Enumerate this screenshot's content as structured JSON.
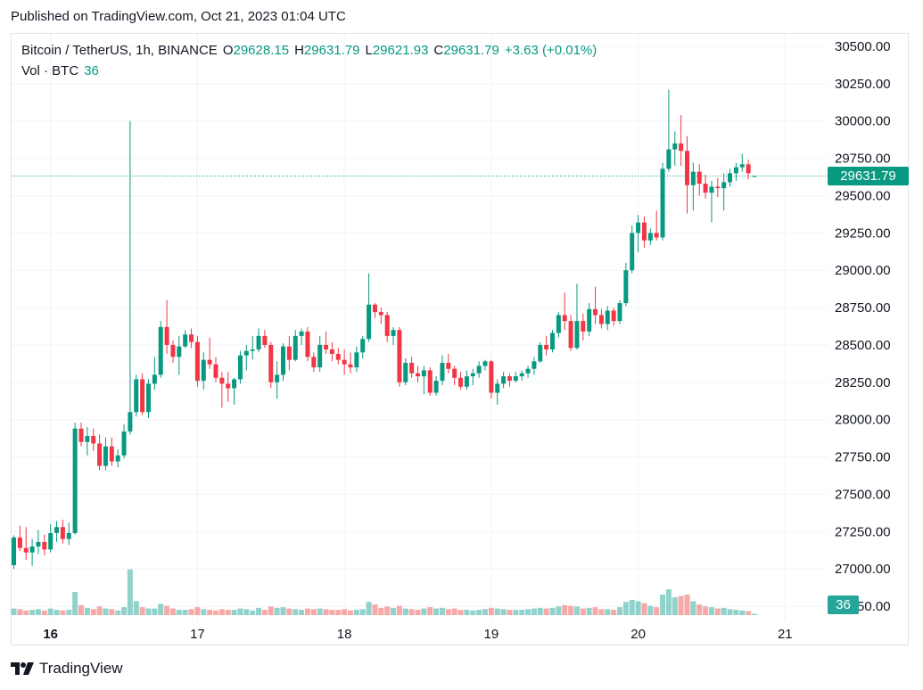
{
  "published": "Published on TradingView.com, Oct 21, 2023 01:04 UTC",
  "legend": {
    "symbol": "Bitcoin / TetherUS, 1h, BINANCE",
    "o_label": "O",
    "o_value": "29628.15",
    "h_label": "H",
    "h_value": "29631.79",
    "l_label": "L",
    "l_value": "29621.93",
    "c_label": "C",
    "c_value": "29631.79",
    "change": "+3.63 (+0.01%)",
    "vol_label": "Vol · BTC",
    "vol_value": "36"
  },
  "last_price_tag": "29631.79",
  "volume_tag": "36",
  "brand": "TradingView",
  "colors": {
    "up": "#089981",
    "down": "#f23645",
    "vol_up": "#26a69a",
    "vol_down": "#ef5350",
    "grid": "#f0f3fa"
  },
  "chart_data": {
    "type": "candlestick",
    "title": "Bitcoin / TetherUS, 1h, BINANCE",
    "y_axis": {
      "range": [
        26750,
        30500
      ],
      "ticks": [
        "30500.00",
        "30250.00",
        "30000.00",
        "29750.00",
        "29500.00",
        "29250.00",
        "29000.00",
        "28750.00",
        "28500.00",
        "28250.00",
        "28000.00",
        "27750.00",
        "27500.00",
        "27250.00",
        "27000.00",
        "26750.00"
      ]
    },
    "x_axis": {
      "ticks": [
        "16",
        "17",
        "18",
        "19",
        "20",
        "21"
      ],
      "bold_tick": "16"
    },
    "last_price": 29631.79,
    "grid": true,
    "candles": [
      [
        27025,
        27225,
        27000,
        27210,
        1.0
      ],
      [
        27210,
        27290,
        27120,
        27140,
        0.9
      ],
      [
        27140,
        27280,
        27060,
        27110,
        0.7
      ],
      [
        27110,
        27200,
        27020,
        27150,
        0.8
      ],
      [
        27150,
        27260,
        27100,
        27180,
        0.9
      ],
      [
        27180,
        27230,
        27090,
        27130,
        0.7
      ],
      [
        27130,
        27300,
        27110,
        27240,
        1.0
      ],
      [
        27240,
        27320,
        27180,
        27280,
        0.8
      ],
      [
        27280,
        27330,
        27170,
        27200,
        0.7
      ],
      [
        27200,
        27310,
        27160,
        27240,
        0.8
      ],
      [
        27240,
        27980,
        27230,
        27940,
        3.5
      ],
      [
        27940,
        27980,
        27820,
        27850,
        1.5
      ],
      [
        27850,
        27950,
        27760,
        27890,
        1.1
      ],
      [
        27890,
        27940,
        27790,
        27840,
        0.9
      ],
      [
        27840,
        27900,
        27660,
        27690,
        1.3
      ],
      [
        27690,
        27880,
        27660,
        27820,
        1.0
      ],
      [
        27820,
        27880,
        27690,
        27720,
        0.9
      ],
      [
        27720,
        27800,
        27680,
        27760,
        0.7
      ],
      [
        27760,
        27970,
        27740,
        27920,
        1.2
      ],
      [
        27920,
        30000,
        27900,
        28050,
        6.9
      ],
      [
        28050,
        28300,
        28020,
        28270,
        2.1
      ],
      [
        28270,
        28310,
        28030,
        28050,
        1.2
      ],
      [
        28050,
        28270,
        28010,
        28240,
        1.0
      ],
      [
        28240,
        28420,
        28200,
        28300,
        1.0
      ],
      [
        28300,
        28660,
        28280,
        28620,
        1.7
      ],
      [
        28620,
        28800,
        28440,
        28500,
        1.4
      ],
      [
        28500,
        28530,
        28380,
        28420,
        1.0
      ],
      [
        28420,
        28560,
        28300,
        28490,
        0.8
      ],
      [
        28490,
        28600,
        28480,
        28570,
        0.8
      ],
      [
        28570,
        28610,
        28480,
        28520,
        0.9
      ],
      [
        28520,
        28560,
        28220,
        28260,
        1.2
      ],
      [
        28260,
        28450,
        28200,
        28400,
        0.9
      ],
      [
        28400,
        28550,
        28340,
        28370,
        0.8
      ],
      [
        28370,
        28420,
        28250,
        28280,
        0.7
      ],
      [
        28280,
        28320,
        28080,
        28240,
        0.9
      ],
      [
        28240,
        28320,
        28120,
        28210,
        0.8
      ],
      [
        28210,
        28280,
        28100,
        28270,
        0.8
      ],
      [
        28270,
        28460,
        28240,
        28430,
        1.0
      ],
      [
        28430,
        28500,
        28330,
        28460,
        0.9
      ],
      [
        28460,
        28560,
        28400,
        28470,
        0.7
      ],
      [
        28470,
        28610,
        28450,
        28560,
        1.1
      ],
      [
        28560,
        28600,
        28480,
        28500,
        0.8
      ],
      [
        28500,
        28520,
        28210,
        28250,
        1.3
      ],
      [
        28250,
        28390,
        28140,
        28300,
        1.1
      ],
      [
        28300,
        28510,
        28260,
        28490,
        1.2
      ],
      [
        28490,
        28560,
        28330,
        28400,
        1.0
      ],
      [
        28400,
        28600,
        28390,
        28560,
        0.9
      ],
      [
        28560,
        28610,
        28500,
        28590,
        0.8
      ],
      [
        28590,
        28620,
        28390,
        28420,
        1.0
      ],
      [
        28420,
        28450,
        28320,
        28350,
        0.9
      ],
      [
        28350,
        28560,
        28320,
        28500,
        1.0
      ],
      [
        28500,
        28590,
        28440,
        28470,
        0.9
      ],
      [
        28470,
        28520,
        28390,
        28440,
        0.8
      ],
      [
        28440,
        28480,
        28370,
        28400,
        0.8
      ],
      [
        28400,
        28470,
        28300,
        28370,
        0.9
      ],
      [
        28370,
        28450,
        28310,
        28350,
        0.7
      ],
      [
        28350,
        28490,
        28320,
        28450,
        0.8
      ],
      [
        28450,
        28560,
        28410,
        28540,
        0.9
      ],
      [
        28540,
        28980,
        28520,
        28770,
        2.0
      ],
      [
        28770,
        28780,
        28680,
        28720,
        1.6
      ],
      [
        28720,
        28750,
        28640,
        28700,
        1.1
      ],
      [
        28700,
        28720,
        28520,
        28560,
        1.3
      ],
      [
        28560,
        28620,
        28500,
        28600,
        1.1
      ],
      [
        28600,
        28620,
        28220,
        28250,
        1.4
      ],
      [
        28250,
        28410,
        28230,
        28380,
        1.0
      ],
      [
        28380,
        28420,
        28280,
        28310,
        0.9
      ],
      [
        28310,
        28360,
        28250,
        28290,
        0.8
      ],
      [
        28290,
        28360,
        28170,
        28330,
        1.0
      ],
      [
        28330,
        28350,
        28160,
        28180,
        1.2
      ],
      [
        28180,
        28290,
        28160,
        28260,
        1.0
      ],
      [
        28260,
        28430,
        28230,
        28380,
        1.1
      ],
      [
        28380,
        28440,
        28310,
        28340,
        0.9
      ],
      [
        28340,
        28360,
        28230,
        28280,
        1.0
      ],
      [
        28280,
        28320,
        28200,
        28220,
        0.8
      ],
      [
        28220,
        28330,
        28200,
        28290,
        0.8
      ],
      [
        28290,
        28340,
        28230,
        28310,
        0.7
      ],
      [
        28310,
        28390,
        28280,
        28360,
        0.8
      ],
      [
        28360,
        28400,
        28330,
        28390,
        0.9
      ],
      [
        28390,
        28400,
        28140,
        28180,
        1.1
      ],
      [
        28180,
        28270,
        28100,
        28240,
        1.0
      ],
      [
        28240,
        28320,
        28210,
        28290,
        0.9
      ],
      [
        28290,
        28310,
        28220,
        28260,
        0.8
      ],
      [
        28260,
        28320,
        28250,
        28290,
        0.8
      ],
      [
        28290,
        28330,
        28260,
        28310,
        0.8
      ],
      [
        28310,
        28360,
        28280,
        28340,
        0.9
      ],
      [
        28340,
        28420,
        28300,
        28390,
        1.0
      ],
      [
        28390,
        28520,
        28380,
        28500,
        1.1
      ],
      [
        28500,
        28560,
        28430,
        28470,
        1.0
      ],
      [
        28470,
        28600,
        28450,
        28580,
        1.1
      ],
      [
        28580,
        28720,
        28550,
        28700,
        1.3
      ],
      [
        28700,
        28850,
        28600,
        28660,
        1.5
      ],
      [
        28660,
        28700,
        28460,
        28480,
        1.4
      ],
      [
        28480,
        28910,
        28470,
        28660,
        1.3
      ],
      [
        28660,
        28710,
        28530,
        28590,
        1.0
      ],
      [
        28590,
        28780,
        28560,
        28740,
        1.1
      ],
      [
        28740,
        28890,
        28640,
        28700,
        1.2
      ],
      [
        28700,
        28740,
        28610,
        28640,
        0.9
      ],
      [
        28640,
        28760,
        28600,
        28730,
        0.9
      ],
      [
        28730,
        28750,
        28630,
        28660,
        0.8
      ],
      [
        28660,
        28800,
        28640,
        28780,
        1.2
      ],
      [
        28780,
        29050,
        28760,
        29000,
        2.0
      ],
      [
        29000,
        29300,
        28980,
        29250,
        2.3
      ],
      [
        29250,
        29370,
        29120,
        29320,
        2.1
      ],
      [
        29320,
        29360,
        29150,
        29200,
        1.8
      ],
      [
        29200,
        29280,
        29170,
        29250,
        1.4
      ],
      [
        29250,
        29400,
        29200,
        29220,
        1.2
      ],
      [
        29220,
        29720,
        29200,
        29680,
        3.1
      ],
      [
        29680,
        30210,
        29660,
        29810,
        3.9
      ],
      [
        29810,
        29930,
        29700,
        29850,
        2.7
      ],
      [
        29850,
        30040,
        29700,
        29800,
        2.9
      ],
      [
        29800,
        29900,
        29380,
        29570,
        3.1
      ],
      [
        29570,
        29720,
        29400,
        29660,
        2.1
      ],
      [
        29660,
        29710,
        29500,
        29580,
        1.6
      ],
      [
        29580,
        29640,
        29480,
        29520,
        1.3
      ],
      [
        29520,
        29600,
        29320,
        29560,
        1.2
      ],
      [
        29560,
        29620,
        29490,
        29550,
        1.0
      ],
      [
        29550,
        29650,
        29400,
        29590,
        1.1
      ],
      [
        29590,
        29680,
        29560,
        29650,
        0.9
      ],
      [
        29650,
        29720,
        29600,
        29690,
        0.8
      ],
      [
        29690,
        29780,
        29660,
        29710,
        0.7
      ],
      [
        29710,
        29740,
        29610,
        29650,
        0.6
      ],
      [
        29628,
        29632,
        29622,
        29632,
        0.2
      ]
    ]
  }
}
